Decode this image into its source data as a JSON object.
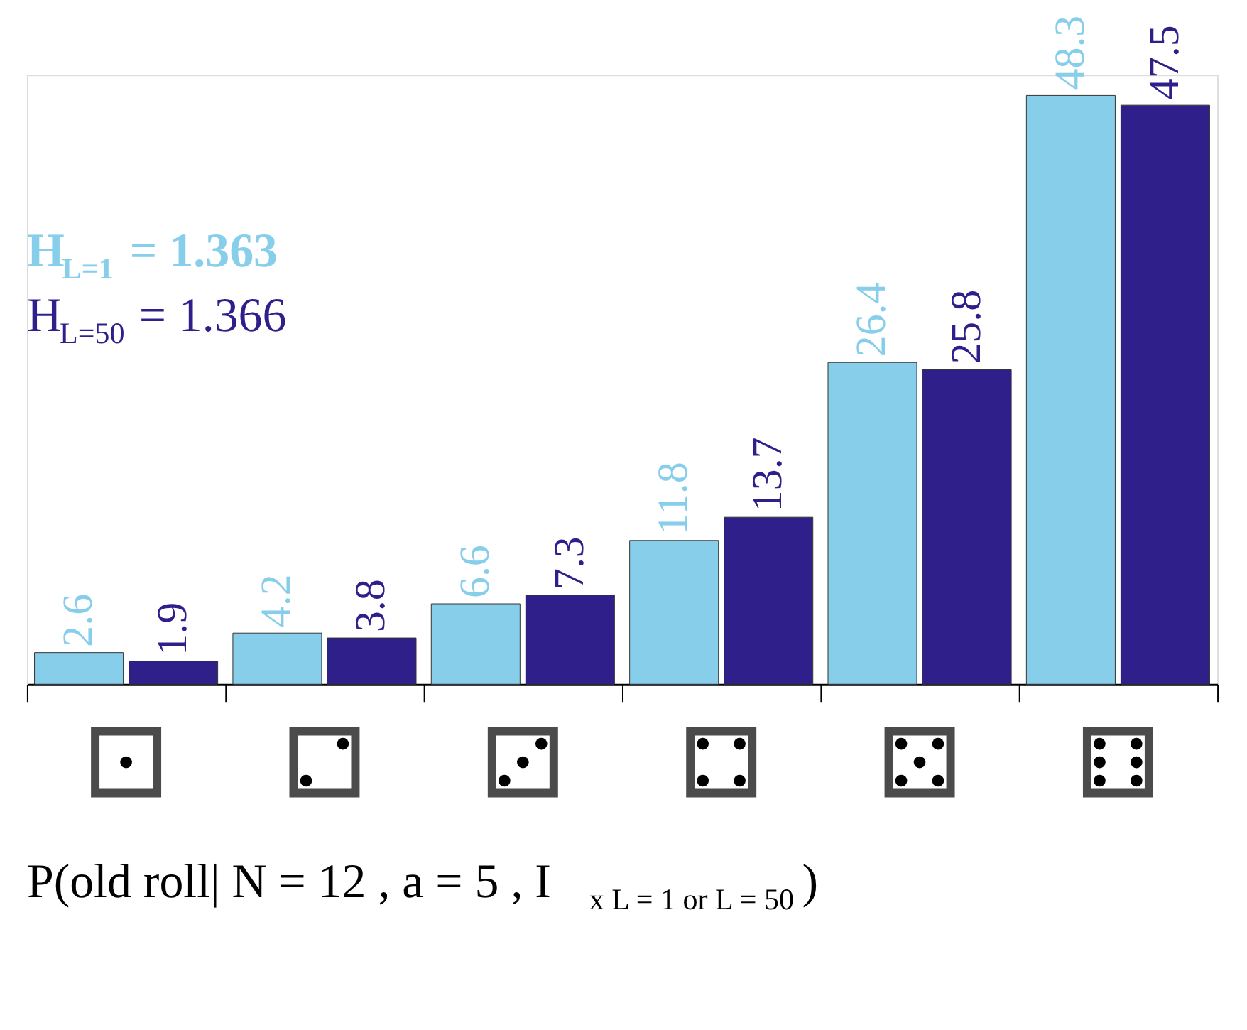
{
  "chart_data": {
    "type": "bar",
    "categories": [
      null,
      null,
      null,
      null,
      null,
      null
    ],
    "series": [
      {
        "color": "#87ceeb",
        "values": [
          2.6,
          4.2,
          6.6,
          11.8,
          26.4,
          48.3
        ]
      },
      {
        "color": "#2e1f8a",
        "values": [
          1.9,
          3.8,
          7.3,
          13.7,
          25.8,
          47.5
        ]
      }
    ],
    "data_labels": true,
    "xlabel": "P(old roll| N = 12 , a = 5 , I$_{x L = 1 or L = 50}$)",
    "annotations": [
      "H$_{L=1}$ = 1.363",
      "H$_{L=50}$ = 1.366"
    ],
    "legend": false,
    "grid": false
  }
}
